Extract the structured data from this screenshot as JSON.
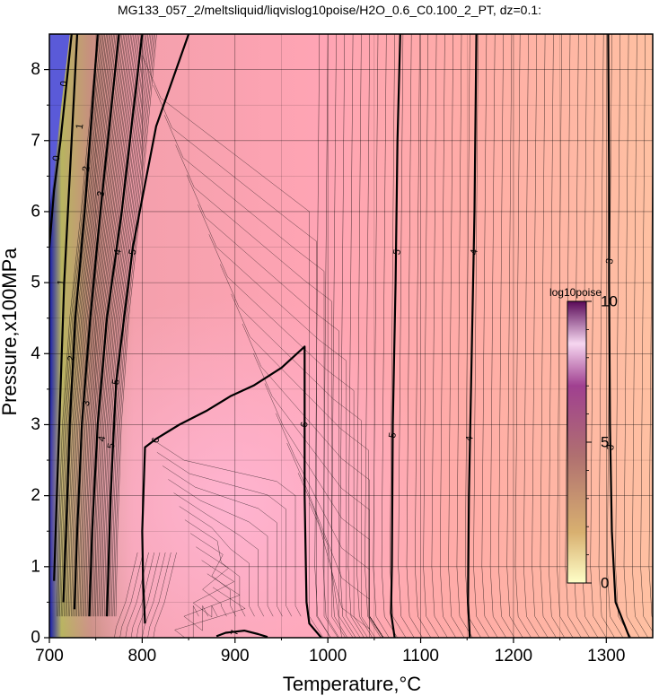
{
  "chart_data": {
    "type": "heatmap",
    "title": "MG133_057_2/meltsliquid/liqvislog10poise/H2O_0.6_C0.100_2_PT, dz=0.1:",
    "xlabel": "Temperature,°C",
    "ylabel": "Pressure,x100MPa",
    "xlim": [
      700,
      1350
    ],
    "ylim": [
      0,
      8.5
    ],
    "x_ticks": [
      700,
      800,
      900,
      1000,
      1100,
      1200,
      1300
    ],
    "y_ticks": [
      0,
      1,
      2,
      3,
      4,
      5,
      6,
      7,
      8
    ],
    "x_tick_labels": [
      "700",
      "800",
      "900",
      "1000",
      "1100",
      "1200",
      "1300"
    ],
    "y_tick_labels": [
      "0",
      "1",
      "2",
      "3",
      "4",
      "5",
      "6",
      "7",
      "8"
    ],
    "grid": true,
    "colorbar": {
      "title": "log10poise",
      "min": 0,
      "max": 10,
      "tick_labels": [
        "0",
        "5",
        "10"
      ],
      "ticks": [
        0,
        5,
        10
      ],
      "colors": [
        "#ffffc8",
        "#c08878",
        "#4a0840",
        "#f6e8f6"
      ]
    },
    "contour_interval": 0.1,
    "labeled_contours": [
      {
        "level": "3",
        "points": [
          [
            1325,
            0
          ],
          [
            1310,
            0.5
          ],
          [
            1306,
            1.5
          ],
          [
            1304,
            3
          ],
          [
            1303,
            5
          ],
          [
            1303,
            6.5
          ],
          [
            1302,
            8.5
          ]
        ],
        "labels": [
          [
            1305,
            2.68
          ],
          [
            1304,
            5.3
          ]
        ]
      },
      {
        "level": "4",
        "points": [
          [
            1153,
            0
          ],
          [
            1151,
            0.5
          ],
          [
            1152,
            2
          ],
          [
            1155,
            4
          ],
          [
            1158,
            6
          ],
          [
            1160,
            8.5
          ]
        ],
        "labels": [
          [
            1153,
            2.8
          ],
          [
            1158,
            5.43
          ]
        ]
      },
      {
        "level": "5",
        "points": [
          [
            1072,
            0
          ],
          [
            1068,
            0.35
          ],
          [
            1069,
            1
          ],
          [
            1070,
            3
          ],
          [
            1073,
            5
          ],
          [
            1075,
            7
          ],
          [
            1078,
            8.5
          ]
        ],
        "labels": [
          [
            1070,
            2.85
          ],
          [
            1075,
            5.43
          ]
        ]
      },
      {
        "level": "6",
        "points": [
          [
            993,
            0
          ],
          [
            980,
            0.2
          ],
          [
            977,
            0.5
          ],
          [
            975,
            2
          ],
          [
            975,
            4.1
          ],
          [
            950,
            3.8
          ],
          [
            920,
            3.55
          ],
          [
            895,
            3.4
          ],
          [
            870,
            3.2
          ],
          [
            840,
            3.0
          ],
          [
            815,
            2.8
          ],
          [
            803,
            2.68
          ],
          [
            802,
            2.3
          ],
          [
            800,
            1.5
          ],
          [
            801,
            0.8
          ],
          [
            803,
            0.2
          ]
        ],
        "labels": [
          [
            975,
            3.0
          ],
          [
            815,
            2.78
          ]
        ]
      },
      {
        "level": "7",
        "points": [
          [
            880,
            0.02
          ],
          [
            890,
            0.07
          ],
          [
            910,
            0.1
          ],
          [
            925,
            0.05
          ],
          [
            935,
            0.01
          ]
        ],
        "labels": [
          [
            900,
            0.07
          ]
        ]
      },
      {
        "level": "5",
        "points": [
          [
            762,
            0.3
          ],
          [
            766,
            2.0
          ],
          [
            772,
            3.6
          ],
          [
            790,
            5.5
          ],
          [
            815,
            7.2
          ],
          [
            850,
            8.5
          ]
        ],
        "labels": [
          [
            767,
            2.7
          ],
          [
            772,
            3.6
          ],
          [
            790,
            5.43
          ]
        ]
      },
      {
        "level": "4",
        "points": [
          [
            743,
            0.3
          ],
          [
            746,
            1.5
          ],
          [
            752,
            3.0
          ],
          [
            762,
            4.5
          ],
          [
            778,
            6.0
          ],
          [
            800,
            8.5
          ]
        ],
        "labels": [
          [
            757,
            2.8
          ],
          [
            774,
            5.43
          ]
        ]
      },
      {
        "level": "3",
        "points": [
          [
            727,
            0.4
          ],
          [
            730,
            1.5
          ],
          [
            735,
            3.0
          ],
          [
            744,
            4.5
          ],
          [
            755,
            6.0
          ],
          [
            775,
            8.5
          ]
        ],
        "labels": [
          [
            740,
            3.3
          ],
          [
            756,
            6.25
          ]
        ]
      },
      {
        "level": "2",
        "points": [
          [
            715,
            0.5
          ],
          [
            718,
            1.5
          ],
          [
            722,
            3.0
          ],
          [
            728,
            4.5
          ],
          [
            738,
            6.0
          ],
          [
            752,
            8.5
          ]
        ],
        "labels": [
          [
            724,
            3.93
          ],
          [
            740,
            6.6
          ]
        ]
      },
      {
        "level": "1",
        "points": [
          [
            705,
            0.8
          ],
          [
            708,
            2.0
          ],
          [
            712,
            3.5
          ],
          [
            716,
            5.0
          ],
          [
            722,
            6.5
          ],
          [
            730,
            8.5
          ]
        ],
        "labels": [
          [
            713,
            5.0
          ],
          [
            733,
            7.2
          ]
        ]
      },
      {
        "level": "0",
        "points": [
          [
            700,
            5.5
          ],
          [
            705,
            6.3
          ],
          [
            712,
            7.0
          ],
          [
            720,
            8.0
          ],
          [
            724,
            8.5
          ]
        ],
        "labels": [
          [
            708,
            6.75
          ],
          [
            716,
            7.8
          ]
        ]
      }
    ]
  }
}
